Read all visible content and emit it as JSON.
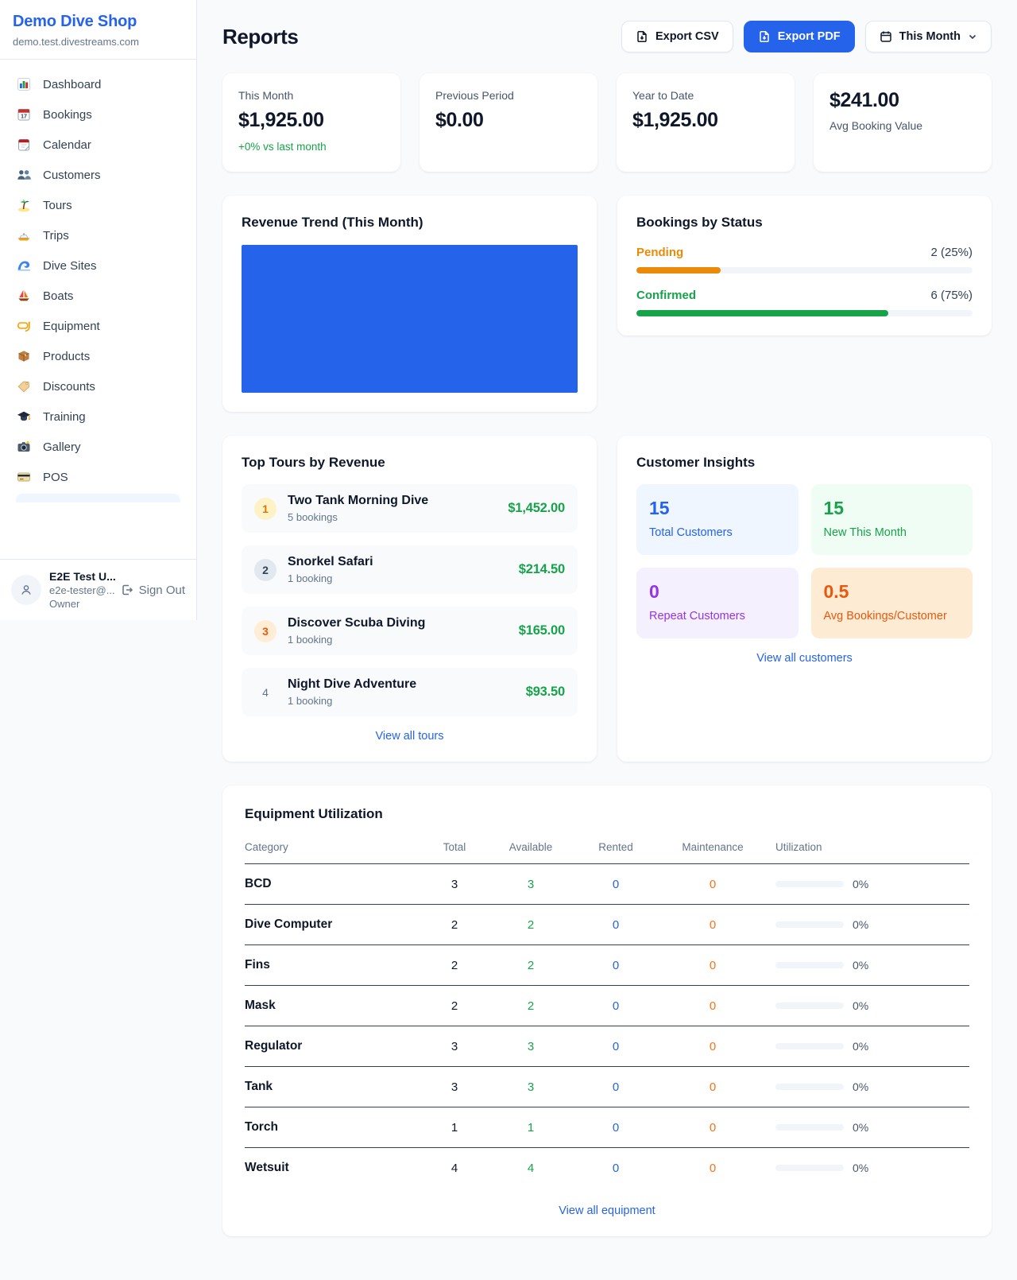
{
  "sidebar": {
    "brand": "Demo Dive Shop",
    "domain": "demo.test.divestreams.com",
    "items": [
      {
        "icon": "dashboard-icon",
        "label": "Dashboard"
      },
      {
        "icon": "bookings-icon",
        "label": "Bookings"
      },
      {
        "icon": "calendar-icon",
        "label": "Calendar"
      },
      {
        "icon": "customers-icon",
        "label": "Customers"
      },
      {
        "icon": "tours-icon",
        "label": "Tours"
      },
      {
        "icon": "trips-icon",
        "label": "Trips"
      },
      {
        "icon": "dive-sites-icon",
        "label": "Dive Sites"
      },
      {
        "icon": "boats-icon",
        "label": "Boats"
      },
      {
        "icon": "equipment-icon",
        "label": "Equipment"
      },
      {
        "icon": "products-icon",
        "label": "Products"
      },
      {
        "icon": "discounts-icon",
        "label": "Discounts"
      },
      {
        "icon": "training-icon",
        "label": "Training"
      },
      {
        "icon": "gallery-icon",
        "label": "Gallery"
      },
      {
        "icon": "pos-icon",
        "label": "POS"
      }
    ],
    "user": {
      "name": "E2E Test U...",
      "email": "e2e-tester@...",
      "role": "Owner",
      "signout_label": "Sign Out"
    }
  },
  "header": {
    "title": "Reports",
    "export_csv_label": "Export CSV",
    "export_pdf_label": "Export PDF",
    "period_label": "This Month"
  },
  "stats": [
    {
      "label": "This Month",
      "value": "$1,925.00",
      "delta": "+0% vs last month"
    },
    {
      "label": "Previous Period",
      "value": "$0.00"
    },
    {
      "label": "Year to Date",
      "value": "$1,925.00"
    },
    {
      "label": "Avg Booking Value",
      "value": "$241.00"
    }
  ],
  "revenue_trend": {
    "title": "Revenue Trend (This Month)",
    "fill_color": "#2563eb"
  },
  "bookings_by_status": {
    "title": "Bookings by Status",
    "rows": [
      {
        "label": "Pending",
        "count": "2 (25%)",
        "pct": 25,
        "color": "#ea8a08",
        "label_color": "#ea8a08"
      },
      {
        "label": "Confirmed",
        "count": "6 (75%)",
        "pct": 75,
        "color": "#16a34a",
        "label_color": "#16a34a"
      }
    ]
  },
  "top_tours": {
    "title": "Top Tours by Revenue",
    "view_all_label": "View all tours",
    "items": [
      {
        "rank": "1",
        "name": "Two Tank Morning Dive",
        "bookings": "5 bookings",
        "value": "$1,452.00"
      },
      {
        "rank": "2",
        "name": "Snorkel Safari",
        "bookings": "1 booking",
        "value": "$214.50"
      },
      {
        "rank": "3",
        "name": "Discover Scuba Diving",
        "bookings": "1 booking",
        "value": "$165.00"
      },
      {
        "rank": "4",
        "name": "Night Dive Adventure",
        "bookings": "1 booking",
        "value": "$93.50"
      }
    ]
  },
  "customer_insights": {
    "title": "Customer Insights",
    "view_all_label": "View all customers",
    "tiles": [
      {
        "value": "15",
        "label": "Total Customers",
        "color": "#2563eb"
      },
      {
        "value": "15",
        "label": "New This Month",
        "color": "#16a34a"
      },
      {
        "value": "0",
        "label": "Repeat Customers",
        "color": "#9333ea"
      },
      {
        "value": "0.5",
        "label": "Avg Bookings/Customer",
        "color": "#ea580c"
      }
    ]
  },
  "equipment": {
    "title": "Equipment Utilization",
    "view_all_label": "View all equipment",
    "columns": [
      "Category",
      "Total",
      "Available",
      "Rented",
      "Maintenance",
      "Utilization"
    ],
    "rows": [
      {
        "category": "BCD",
        "total": "3",
        "available": "3",
        "rented": "0",
        "maintenance": "0",
        "utilization": "0%",
        "util_pct": 0
      },
      {
        "category": "Dive Computer",
        "total": "2",
        "available": "2",
        "rented": "0",
        "maintenance": "0",
        "utilization": "0%",
        "util_pct": 0
      },
      {
        "category": "Fins",
        "total": "2",
        "available": "2",
        "rented": "0",
        "maintenance": "0",
        "utilization": "0%",
        "util_pct": 0
      },
      {
        "category": "Mask",
        "total": "2",
        "available": "2",
        "rented": "0",
        "maintenance": "0",
        "utilization": "0%",
        "util_pct": 0
      },
      {
        "category": "Regulator",
        "total": "3",
        "available": "3",
        "rented": "0",
        "maintenance": "0",
        "utilization": "0%",
        "util_pct": 0
      },
      {
        "category": "Tank",
        "total": "3",
        "available": "3",
        "rented": "0",
        "maintenance": "0",
        "utilization": "0%",
        "util_pct": 0
      },
      {
        "category": "Torch",
        "total": "1",
        "available": "1",
        "rented": "0",
        "maintenance": "0",
        "utilization": "0%",
        "util_pct": 0
      },
      {
        "category": "Wetsuit",
        "total": "4",
        "available": "4",
        "rented": "0",
        "maintenance": "0",
        "utilization": "0%",
        "util_pct": 0
      }
    ]
  }
}
